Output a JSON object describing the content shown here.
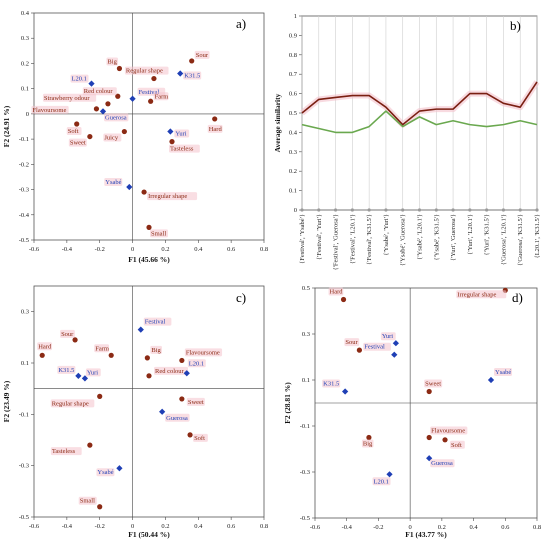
{
  "colors": {
    "brown": "#8b2a14",
    "blue": "#1f3fb5",
    "green": "#6aa84f",
    "dark_red": "#7a1f12",
    "highlight": "#f4c2cc"
  },
  "chart_data": [
    {
      "id": "a",
      "type": "scatter",
      "panel_label": "a)",
      "xlabel": "F1 (45.66 %)",
      "ylabel": "F2 (24.91 %)",
      "xlim": [
        -0.6,
        0.8
      ],
      "ylim": [
        -0.5,
        0.4
      ],
      "xticks": [
        -0.6,
        -0.4,
        -0.2,
        0,
        0.2,
        0.4,
        0.6,
        0.8
      ],
      "xtick_labels": [
        "-0.6",
        "-0.4",
        "-0.2",
        "0",
        "0.2",
        "0.4",
        "0.6",
        "0.8"
      ],
      "yticks": [
        -0.5,
        -0.4,
        -0.3,
        -0.2,
        -0.1,
        0,
        0.1,
        0.2,
        0.3,
        0.4
      ],
      "ytick_labels": [
        "-0.5",
        "-0.4",
        "-0.3",
        "-0.2",
        "-0.1",
        "0",
        "0.1",
        "0.2",
        "0.3",
        "0.4"
      ],
      "grid": false,
      "points": [
        {
          "label": "Sour",
          "x": 0.36,
          "y": 0.21,
          "kind": "attribute",
          "dx": 4,
          "dy": -4
        },
        {
          "label": "Big",
          "x": -0.08,
          "y": 0.18,
          "kind": "attribute",
          "dx": -12,
          "dy": -5
        },
        {
          "label": "Regular shape",
          "x": 0.13,
          "y": 0.14,
          "kind": "attribute",
          "dx": -28,
          "dy": -6
        },
        {
          "label": "K31.5",
          "x": 0.29,
          "y": 0.16,
          "kind": "product",
          "dx": 4,
          "dy": 4
        },
        {
          "label": "L20.1",
          "x": -0.25,
          "y": 0.12,
          "kind": "product",
          "dx": -20,
          "dy": -3
        },
        {
          "label": "Festival",
          "x": 0.0,
          "y": 0.06,
          "kind": "product",
          "dx": 6,
          "dy": -5
        },
        {
          "label": "Red colour",
          "x": -0.09,
          "y": 0.07,
          "kind": "attribute",
          "dx": -34,
          "dy": -3
        },
        {
          "label": "Farm",
          "x": 0.11,
          "y": 0.05,
          "kind": "attribute",
          "dx": 4,
          "dy": -3
        },
        {
          "label": "Strawberry odour",
          "x": -0.15,
          "y": 0.04,
          "kind": "attribute",
          "dx": -64,
          "dy": -4
        },
        {
          "label": "Flavoursome",
          "x": -0.22,
          "y": 0.02,
          "kind": "attribute",
          "dx": -64,
          "dy": 3
        },
        {
          "label": "Guerosa",
          "x": -0.18,
          "y": 0.01,
          "kind": "product",
          "dx": 2,
          "dy": 8
        },
        {
          "label": "Hard",
          "x": 0.5,
          "y": -0.02,
          "kind": "attribute",
          "dx": -6,
          "dy": 12
        },
        {
          "label": "Soft",
          "x": -0.34,
          "y": -0.04,
          "kind": "attribute",
          "dx": -9,
          "dy": 9
        },
        {
          "label": "Sweet",
          "x": -0.26,
          "y": -0.09,
          "kind": "attribute",
          "dx": -20,
          "dy": 8
        },
        {
          "label": "Juicy",
          "x": -0.05,
          "y": -0.07,
          "kind": "attribute",
          "dx": -20,
          "dy": 8
        },
        {
          "label": "Yuri",
          "x": 0.23,
          "y": -0.07,
          "kind": "product",
          "dx": 5,
          "dy": 4
        },
        {
          "label": "Tasteless",
          "x": 0.24,
          "y": -0.11,
          "kind": "attribute",
          "dx": -2,
          "dy": 9
        },
        {
          "label": "Ysabé",
          "x": -0.02,
          "y": -0.29,
          "kind": "product",
          "dx": -24,
          "dy": 0
        },
        {
          "label": "Irregular shape",
          "x": 0.07,
          "y": -0.31,
          "kind": "attribute",
          "dx": 4,
          "dy": 6
        },
        {
          "label": "Small",
          "x": 0.1,
          "y": -0.45,
          "kind": "attribute",
          "dx": 2,
          "dy": 8
        }
      ]
    },
    {
      "id": "b",
      "type": "line",
      "panel_label": "b)",
      "ylabel": "Average similarity",
      "ylim": [
        0,
        1
      ],
      "yticks": [
        0,
        0.1,
        0.2,
        0.3,
        0.4,
        0.5,
        0.6,
        0.7,
        0.8,
        0.9,
        1
      ],
      "ytick_labels": [
        "0",
        "0.1",
        "0.2",
        "0.3",
        "0.4",
        "0.5",
        "0.6",
        "0.7",
        "0.8",
        "0.9",
        "1"
      ],
      "categories": [
        "{Festival', 'Ysabé'}",
        "{'Festival', 'Yuri'}",
        "{'Festival', 'Guerosa'}",
        "{'Festival', 'L20.1'}",
        "{'Festival', 'K31.5'}",
        "{'Ysabé', 'Yuri'}",
        "{'Ysabé', 'Guerosa'}",
        "{'Ysabé', 'L20.1'}",
        "{'Ysabé', 'K31.5'}",
        "{'Yuri', 'Guerosa'}",
        "{'Yuri', 'L20.1'}",
        "{'Yuri', 'K31.5'}",
        "{'Guerosa', 'L20.1'}",
        "{'Guerosa', 'K31.5'}",
        "{L20.1', 'K31.5'}"
      ],
      "series": [
        {
          "values": [
            0.5,
            0.57,
            0.58,
            0.59,
            0.59,
            0.53,
            0.44,
            0.51,
            0.52,
            0.52,
            0.6,
            0.6,
            0.55,
            0.53,
            0.66
          ]
        },
        {
          "values": [
            0.44,
            0.42,
            0.4,
            0.4,
            0.43,
            0.51,
            0.43,
            0.48,
            0.44,
            0.46,
            0.44,
            0.43,
            0.44,
            0.46,
            0.44
          ]
        }
      ]
    },
    {
      "id": "c",
      "type": "scatter",
      "panel_label": "c)",
      "xlabel": "F1 (50.44 %)",
      "ylabel": "F2 (23.49 %)",
      "xlim": [
        -0.6,
        0.8
      ],
      "ylim": [
        -0.5,
        0.4
      ],
      "xticks": [
        -0.6,
        -0.4,
        -0.2,
        0,
        0.2,
        0.4,
        0.6,
        0.8
      ],
      "xtick_labels": [
        "-0.6",
        "-0.4",
        "-0.2",
        "0",
        "0.2",
        "0.4",
        "0.6",
        "0.8"
      ],
      "yticks": [
        -0.5,
        -0.3,
        -0.1,
        0.1,
        0.3
      ],
      "ytick_labels": [
        "-0.5",
        "-0.3",
        "-0.1",
        "0.1",
        "0.3"
      ],
      "grid": false,
      "points": [
        {
          "label": "Festival",
          "x": 0.05,
          "y": 0.23,
          "kind": "product",
          "dx": 4,
          "dy": -6
        },
        {
          "label": "Sour",
          "x": -0.35,
          "y": 0.19,
          "kind": "attribute",
          "dx": -14,
          "dy": -4
        },
        {
          "label": "Hard",
          "x": -0.55,
          "y": 0.13,
          "kind": "attribute",
          "dx": -4,
          "dy": -7
        },
        {
          "label": "Farm",
          "x": -0.13,
          "y": 0.13,
          "kind": "attribute",
          "dx": -16,
          "dy": -5
        },
        {
          "label": "Big",
          "x": 0.09,
          "y": 0.12,
          "kind": "attribute",
          "dx": 4,
          "dy": -6
        },
        {
          "label": "Flavoursome",
          "x": 0.3,
          "y": 0.11,
          "kind": "attribute",
          "dx": 4,
          "dy": -6
        },
        {
          "label": "K31.5",
          "x": -0.33,
          "y": 0.05,
          "kind": "product",
          "dx": -20,
          "dy": -4
        },
        {
          "label": "Yuri",
          "x": -0.29,
          "y": 0.04,
          "kind": "product",
          "dx": 2,
          "dy": -4
        },
        {
          "label": "Red colour",
          "x": 0.1,
          "y": 0.05,
          "kind": "attribute",
          "dx": 6,
          "dy": -3
        },
        {
          "label": "L20.1",
          "x": 0.33,
          "y": 0.06,
          "kind": "product",
          "dx": 2,
          "dy": -8
        },
        {
          "label": "Regular shape",
          "x": -0.2,
          "y": -0.03,
          "kind": "attribute",
          "dx": -48,
          "dy": 9
        },
        {
          "label": "Sweet",
          "x": 0.3,
          "y": -0.04,
          "kind": "attribute",
          "dx": 6,
          "dy": 5
        },
        {
          "label": "Guerosa",
          "x": 0.18,
          "y": -0.09,
          "kind": "product",
          "dx": 4,
          "dy": 8
        },
        {
          "label": "Soft",
          "x": 0.35,
          "y": -0.18,
          "kind": "attribute",
          "dx": 4,
          "dy": 5
        },
        {
          "label": "Tasteless",
          "x": -0.26,
          "y": -0.22,
          "kind": "attribute",
          "dx": -38,
          "dy": 8
        },
        {
          "label": "Ysabé",
          "x": -0.08,
          "y": -0.31,
          "kind": "product",
          "dx": -22,
          "dy": 6
        },
        {
          "label": "Small",
          "x": -0.2,
          "y": -0.46,
          "kind": "attribute",
          "dx": -20,
          "dy": -4
        }
      ]
    },
    {
      "id": "d",
      "type": "scatter",
      "panel_label": "d)",
      "xlabel": "F1 (43.77 %)",
      "ylabel": "F2 (28.81 %)",
      "xlim": [
        -0.6,
        0.8
      ],
      "ylim": [
        -0.5,
        0.5
      ],
      "xticks": [
        -0.6,
        -0.4,
        -0.2,
        0,
        0.2,
        0.4,
        0.6,
        0.8
      ],
      "xtick_labels": [
        "-0.6",
        "-0.4",
        "-0.2",
        "0",
        "0.2",
        "0.4",
        "0.6",
        "0.8"
      ],
      "yticks": [
        -0.5,
        -0.3,
        -0.1,
        0.1,
        0.3,
        0.5
      ],
      "ytick_labels": [
        "-0.5",
        "-0.3",
        "-0.1",
        "0.1",
        "0.3",
        "0.5"
      ],
      "grid": false,
      "points": [
        {
          "label": "Hard",
          "x": -0.42,
          "y": 0.45,
          "kind": "attribute",
          "dx": -14,
          "dy": -6
        },
        {
          "label": "Irregular shape",
          "x": 0.6,
          "y": 0.49,
          "kind": "attribute",
          "dx": -48,
          "dy": 6
        },
        {
          "label": "Yuri",
          "x": -0.09,
          "y": 0.26,
          "kind": "product",
          "dx": -14,
          "dy": -5
        },
        {
          "label": "Sour",
          "x": -0.32,
          "y": 0.23,
          "kind": "attribute",
          "dx": -14,
          "dy": -6
        },
        {
          "label": "Festival",
          "x": -0.1,
          "y": 0.21,
          "kind": "product",
          "dx": -30,
          "dy": -6
        },
        {
          "label": "Ysabé",
          "x": 0.51,
          "y": 0.1,
          "kind": "product",
          "dx": 4,
          "dy": -6
        },
        {
          "label": "K31.5",
          "x": -0.41,
          "y": 0.05,
          "kind": "product",
          "dx": -22,
          "dy": -6
        },
        {
          "label": "Sweet",
          "x": 0.12,
          "y": 0.05,
          "kind": "attribute",
          "dx": -4,
          "dy": -6
        },
        {
          "label": "Big",
          "x": -0.26,
          "y": -0.15,
          "kind": "attribute",
          "dx": -6,
          "dy": 8
        },
        {
          "label": "Flavoursome",
          "x": 0.12,
          "y": -0.15,
          "kind": "attribute",
          "dx": 2,
          "dy": -5
        },
        {
          "label": "Soft",
          "x": 0.22,
          "y": -0.16,
          "kind": "attribute",
          "dx": 6,
          "dy": 7
        },
        {
          "label": "Guerosa",
          "x": 0.12,
          "y": -0.24,
          "kind": "product",
          "dx": 2,
          "dy": 7
        },
        {
          "label": "L20.1",
          "x": -0.13,
          "y": -0.31,
          "kind": "product",
          "dx": -16,
          "dy": 9
        }
      ]
    }
  ]
}
